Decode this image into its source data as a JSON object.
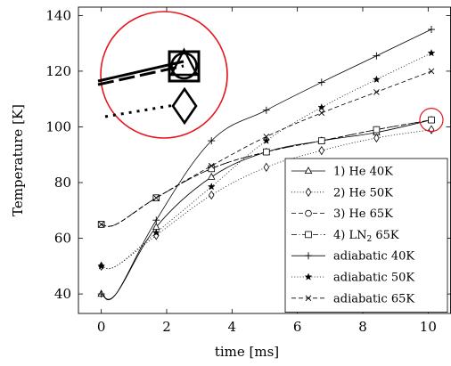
{
  "chart_data": {
    "type": "line",
    "xlabel": "time [ms]",
    "ylabel": "Temperature [K]",
    "xlim": [
      -0.7,
      10.7
    ],
    "ylim": [
      33,
      143
    ],
    "xticks": [
      0,
      2,
      4,
      6,
      8,
      10
    ],
    "yticks": [
      40,
      60,
      80,
      100,
      120,
      140
    ],
    "grid": false,
    "legend_position": "bottom-right",
    "series": [
      {
        "name": "1) He 40K",
        "label_main": "1) He 40K",
        "label_sub": "",
        "label_tail": "",
        "marker": "triangle",
        "dash": "solid",
        "x": [
          0,
          1.68,
          3.37,
          5.05,
          6.74,
          8.42,
          10.1
        ],
        "y": [
          40,
          64,
          82,
          91,
          95,
          98,
          102.5
        ]
      },
      {
        "name": "2) He 50K",
        "label_main": "2) He 50K",
        "label_sub": "",
        "label_tail": "",
        "marker": "diamond",
        "dash": "dotted",
        "x": [
          0,
          1.68,
          3.37,
          5.05,
          6.74,
          8.42,
          10.1
        ],
        "y": [
          50,
          61,
          75.5,
          85.5,
          91.5,
          96,
          99
        ]
      },
      {
        "name": "3) He 65K",
        "label_main": "3) He 65K",
        "label_sub": "",
        "label_tail": "",
        "marker": "circle",
        "dash": "dashed",
        "x": [
          0,
          1.68,
          3.37,
          5.05,
          6.74,
          8.42,
          10.1
        ],
        "y": [
          65,
          74.5,
          85,
          91,
          95,
          99,
          102.5
        ]
      },
      {
        "name": "4) LN2 65K",
        "label_main": "4) LN",
        "label_sub": "2",
        "label_tail": " 65K",
        "marker": "square",
        "dash": "dashdot",
        "x": [
          0,
          1.68,
          3.37,
          5.05,
          6.74,
          8.42,
          10.1
        ],
        "y": [
          65,
          74.5,
          85,
          91,
          95,
          99,
          102.5
        ]
      },
      {
        "name": "adiabatic 40K",
        "label_main": "adiabatic 40K",
        "label_sub": "",
        "label_tail": "",
        "marker": "plus",
        "dash": "solid",
        "x": [
          0,
          1.68,
          3.37,
          5.05,
          6.74,
          8.42,
          10.1
        ],
        "y": [
          40,
          66.5,
          95,
          106,
          116,
          125.5,
          135
        ]
      },
      {
        "name": "adiabatic 50K",
        "label_main": "adiabatic 50K",
        "label_sub": "",
        "label_tail": "",
        "marker": "star",
        "dash": "dotted",
        "x": [
          0,
          1.68,
          3.37,
          5.05,
          6.74,
          8.42,
          10.1
        ],
        "y": [
          50,
          62,
          78.5,
          95,
          107,
          117,
          126.5
        ]
      },
      {
        "name": "adiabatic 65K",
        "label_main": "adiabatic 65K",
        "label_sub": "",
        "label_tail": "",
        "marker": "cross",
        "dash": "dashed",
        "x": [
          0,
          1.68,
          3.37,
          5.05,
          6.74,
          8.42,
          10.1
        ],
        "y": [
          65,
          74.5,
          86,
          96.5,
          105,
          112.5,
          120
        ]
      }
    ],
    "annotation": {
      "type": "zoom-circle",
      "target_x": 10.1,
      "target_y": 102.5,
      "inset_location": "top-left",
      "color": "#e8141e"
    }
  }
}
